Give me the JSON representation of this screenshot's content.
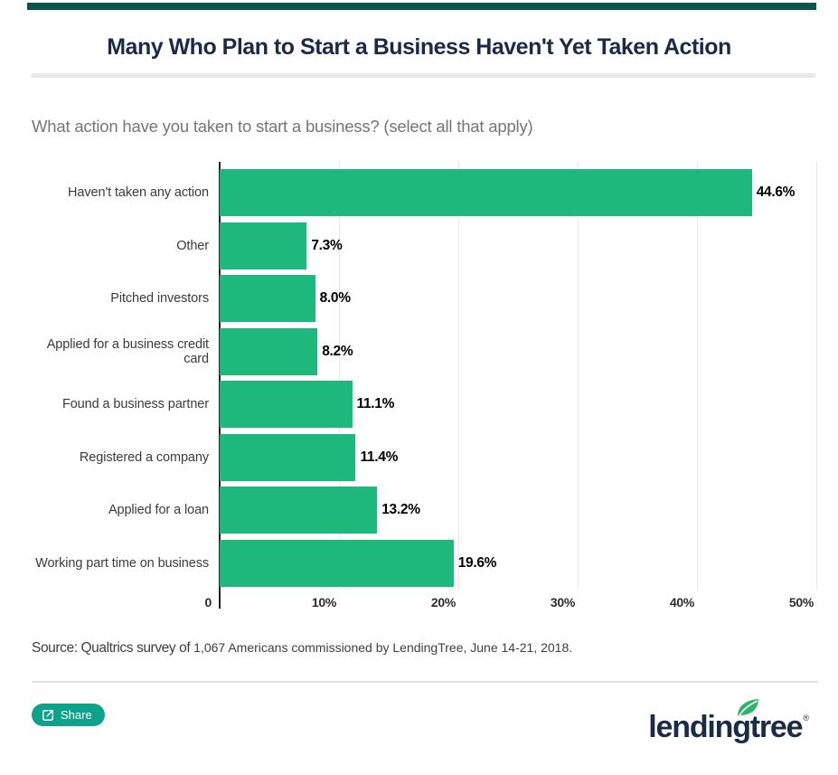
{
  "page": {
    "title": "Many Who Plan to Start a Business Haven't Yet Taken Action",
    "question": "What action have you taken to start a business? (select all that apply)"
  },
  "chart_data": {
    "type": "bar",
    "orientation": "horizontal",
    "title": "What action have you taken to start a business? (select all that apply)",
    "categories": [
      "Haven't taken any action",
      "Other",
      "Pitched investors",
      "Applied for a business credit card",
      "Found a business partner",
      "Registered a company",
      "Applied for a loan",
      "Working part time on business"
    ],
    "values": [
      44.6,
      7.3,
      8.0,
      8.2,
      11.1,
      11.4,
      13.2,
      19.6
    ],
    "value_labels": [
      "44.6%",
      "7.3%",
      "8.0%",
      "8.2%",
      "11.1%",
      "11.4%",
      "13.2%",
      "19.6%"
    ],
    "x_ticks": [
      "0",
      "10%",
      "20%",
      "30%",
      "40%",
      "50%"
    ],
    "xlim": [
      0,
      50
    ],
    "xlabel": "",
    "ylabel": "",
    "grid": "vertical",
    "legend": "none",
    "bar_color": "#1EB87C",
    "axis_color": "#222222",
    "gridline_color": "#E8E8E8"
  },
  "source": {
    "prefix": "Source: Qualtrics survey of",
    "detail": " 1,067 Americans commissioned by LendingTree, June 14-21, 2018."
  },
  "footer": {
    "share_label": "Share",
    "logo_text": "lendingtree",
    "registered_mark": "®"
  },
  "colors": {
    "accent_bar": "#0A574A",
    "title_navy": "#1A2B4A",
    "bar_green": "#1EB87C",
    "share_teal": "#0EA28C",
    "subtitle_gray": "#767676"
  }
}
